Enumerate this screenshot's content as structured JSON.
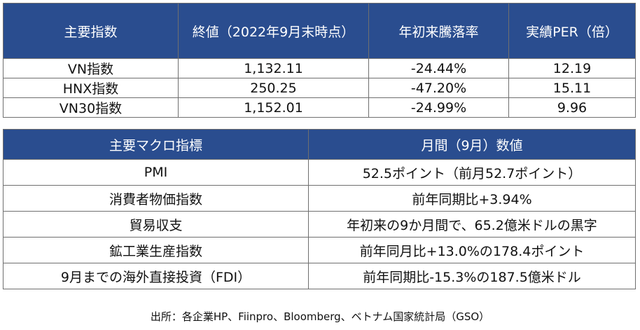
{
  "colors": {
    "header_bg": "#2a4d8f",
    "header_text": "#ffffff",
    "border": "#6f6f6f"
  },
  "indices_table": {
    "headers": [
      "主要指数",
      "終値（2022年9月末時点）",
      "年初来騰落率",
      "実績PER（倍）"
    ],
    "rows": [
      [
        "VN指数",
        "1,132.11",
        "-24.44%",
        "12.19"
      ],
      [
        "HNX指数",
        "250.25",
        "-47.20%",
        "15.11"
      ],
      [
        "VN30指数",
        "1,152.01",
        "-24.99%",
        "9.96"
      ]
    ]
  },
  "macro_table": {
    "headers": [
      "主要マクロ指標",
      "月間（9月）数値"
    ],
    "rows": [
      [
        "PMI",
        "52.5ポイント（前月52.7ポイント）"
      ],
      [
        "消費者物価指数",
        "前年同期比+3.94%"
      ],
      [
        "貿易収支",
        "年初来の9か月間で、65.2億米ドルの黒字"
      ],
      [
        "鉱工業生産指数",
        "前年同月比+13.0%の178.4ポイント"
      ],
      [
        "9月までの海外直接投資（FDI）",
        "前年同期比-15.3%の187.5億米ドル"
      ]
    ]
  },
  "source_note": "出所：各企業HP、Fiinpro、Bloomberg、ベトナム国家統計局（GSO）"
}
